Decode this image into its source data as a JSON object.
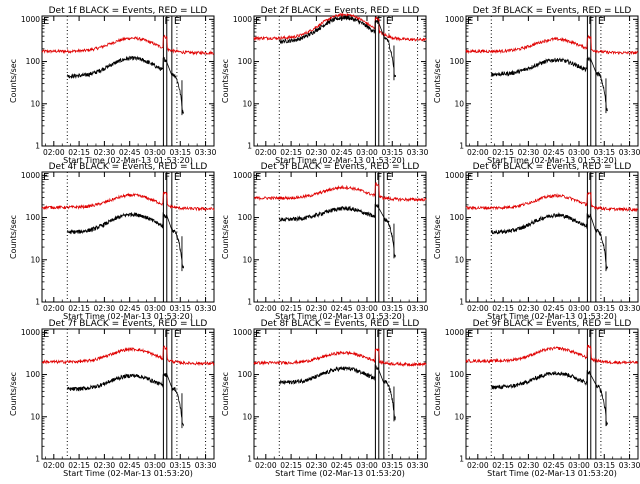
{
  "figure": {
    "xlabel": "Start Time (02-Mar-13 01:53:20)",
    "ylabel": "Counts/sec"
  },
  "chart_data": [
    {
      "type": "line",
      "title": "Det 1f BLACK = Events, RED = LLD",
      "ylabel": "Counts/sec",
      "xlabel": "Start Time (02-Mar-13 01:53:20)",
      "x_ticks": [
        "02:00",
        "02:15",
        "02:30",
        "02:45",
        "03:00",
        "03:15",
        "03:30"
      ],
      "y_scale": "log",
      "y_ticks": [
        "1",
        "10",
        "100",
        "1000"
      ],
      "ylim": [
        1,
        1200
      ],
      "xlim": [
        "01:53",
        "03:35"
      ],
      "series": [
        {
          "color": "#e00000",
          "baseline": 175,
          "peak": 360
        },
        {
          "color": "#000000",
          "baseline": 45,
          "peak": 120
        }
      ],
      "markers": {
        "dotted": [
          "02:08",
          "03:13",
          "03:30"
        ],
        "solid": [
          "03:05",
          "03:07",
          "03:10"
        ],
        "flags": [
          "F",
          "E"
        ]
      }
    },
    {
      "type": "line",
      "title": "Det 2f BLACK = Events, RED = LLD",
      "ylabel": "Counts/sec",
      "xlabel": "Start Time (02-Mar-13 01:53:20)",
      "x_ticks": [
        "02:00",
        "02:15",
        "02:30",
        "02:45",
        "03:00",
        "03:15",
        "03:30"
      ],
      "y_scale": "log",
      "y_ticks": [
        "1",
        "10",
        "100",
        "1000"
      ],
      "ylim": [
        1,
        1200
      ],
      "xlim": [
        "01:53",
        "03:35"
      ],
      "series": [
        {
          "color": "#e00000",
          "baseline": 360,
          "peak": 1300
        },
        {
          "color": "#000000",
          "baseline": 300,
          "peak": 1100
        }
      ],
      "markers": {
        "dotted": [
          "02:08",
          "03:13",
          "03:30"
        ],
        "solid": [
          "03:05",
          "03:07",
          "03:10"
        ],
        "flags": [
          "F",
          "E"
        ]
      }
    },
    {
      "type": "line",
      "title": "Det 3f BLACK = Events, RED = LLD",
      "ylabel": "Counts/sec",
      "xlabel": "Start Time (02-Mar-13 01:53:20)",
      "x_ticks": [
        "02:00",
        "02:15",
        "02:30",
        "02:45",
        "03:00",
        "03:15",
        "03:30"
      ],
      "y_scale": "log",
      "y_ticks": [
        "1",
        "10",
        "100",
        "1000"
      ],
      "ylim": [
        1,
        1200
      ],
      "xlim": [
        "01:53",
        "03:35"
      ],
      "series": [
        {
          "color": "#e00000",
          "baseline": 175,
          "peak": 340
        },
        {
          "color": "#000000",
          "baseline": 50,
          "peak": 110
        }
      ],
      "markers": {
        "dotted": [
          "02:08",
          "03:13",
          "03:30"
        ],
        "solid": [
          "03:05",
          "03:07",
          "03:10"
        ],
        "flags": [
          "F",
          "E"
        ]
      }
    },
    {
      "type": "line",
      "title": "Det 4f BLACK = Events, RED = LLD",
      "ylabel": "Counts/sec",
      "xlabel": "Start Time (02-Mar-13 01:53:20)",
      "x_ticks": [
        "02:00",
        "02:15",
        "02:30",
        "02:45",
        "03:00",
        "03:15",
        "03:30"
      ],
      "y_scale": "log",
      "y_ticks": [
        "1",
        "10",
        "100",
        "1000"
      ],
      "ylim": [
        1,
        1200
      ],
      "xlim": [
        "01:53",
        "03:35"
      ],
      "series": [
        {
          "color": "#e00000",
          "baseline": 175,
          "peak": 340
        },
        {
          "color": "#000000",
          "baseline": 45,
          "peak": 120
        }
      ],
      "markers": {
        "dotted": [
          "02:08",
          "03:13",
          "03:30"
        ],
        "solid": [
          "03:05",
          "03:07",
          "03:10"
        ],
        "flags": [
          "F",
          "E"
        ]
      }
    },
    {
      "type": "line",
      "title": "Det 5f BLACK = Events, RED = LLD",
      "ylabel": "Counts/sec",
      "xlabel": "Start Time (02-Mar-13 01:53:20)",
      "x_ticks": [
        "02:00",
        "02:15",
        "02:30",
        "02:45",
        "03:00",
        "03:15",
        "03:30"
      ],
      "y_scale": "log",
      "y_ticks": [
        "1",
        "10",
        "100",
        "1000"
      ],
      "ylim": [
        1,
        1200
      ],
      "xlim": [
        "01:53",
        "03:35"
      ],
      "series": [
        {
          "color": "#e00000",
          "baseline": 290,
          "peak": 520
        },
        {
          "color": "#000000",
          "baseline": 90,
          "peak": 165
        }
      ],
      "markers": {
        "dotted": [
          "02:08",
          "03:13",
          "03:30"
        ],
        "solid": [
          "03:05",
          "03:07",
          "03:10"
        ],
        "flags": [
          "F",
          "E"
        ]
      }
    },
    {
      "type": "line",
      "title": "Det 6f BLACK = Events, RED = LLD",
      "ylabel": "Counts/sec",
      "xlabel": "Start Time (02-Mar-13 01:53:20)",
      "x_ticks": [
        "02:00",
        "02:15",
        "02:30",
        "02:45",
        "03:00",
        "03:15",
        "03:30"
      ],
      "y_scale": "log",
      "y_ticks": [
        "1",
        "10",
        "100",
        "1000"
      ],
      "ylim": [
        1,
        1200
      ],
      "xlim": [
        "01:53",
        "03:35"
      ],
      "series": [
        {
          "color": "#e00000",
          "baseline": 170,
          "peak": 330
        },
        {
          "color": "#000000",
          "baseline": 45,
          "peak": 115
        }
      ],
      "markers": {
        "dotted": [
          "02:08",
          "03:13",
          "03:30"
        ],
        "solid": [
          "03:05",
          "03:07",
          "03:10"
        ],
        "flags": [
          "F",
          "E"
        ]
      }
    },
    {
      "type": "line",
      "title": "Det 7f BLACK = Events, RED = LLD",
      "ylabel": "Counts/sec",
      "xlabel": "Start Time (02-Mar-13 01:53:20)",
      "x_ticks": [
        "02:00",
        "02:15",
        "02:30",
        "02:45",
        "03:00",
        "03:15",
        "03:30"
      ],
      "y_scale": "log",
      "y_ticks": [
        "1",
        "10",
        "100",
        "1000"
      ],
      "ylim": [
        1,
        1200
      ],
      "xlim": [
        "01:53",
        "03:35"
      ],
      "series": [
        {
          "color": "#e00000",
          "baseline": 200,
          "peak": 400
        },
        {
          "color": "#000000",
          "baseline": 45,
          "peak": 95
        }
      ],
      "markers": {
        "dotted": [
          "02:08",
          "03:13",
          "03:30"
        ],
        "solid": [
          "03:05",
          "03:07",
          "03:10"
        ],
        "flags": [
          "F",
          "E"
        ]
      }
    },
    {
      "type": "line",
      "title": "Det 8f BLACK = Events, RED = LLD",
      "ylabel": "Counts/sec",
      "xlabel": "Start Time (02-Mar-13 01:53:20)",
      "x_ticks": [
        "02:00",
        "02:15",
        "02:30",
        "02:45",
        "03:00",
        "03:15",
        "03:30"
      ],
      "y_scale": "log",
      "y_ticks": [
        "1",
        "10",
        "100",
        "1000"
      ],
      "ylim": [
        1,
        1200
      ],
      "xlim": [
        "01:53",
        "03:35"
      ],
      "series": [
        {
          "color": "#e00000",
          "baseline": 190,
          "peak": 330
        },
        {
          "color": "#000000",
          "baseline": 65,
          "peak": 140
        }
      ],
      "markers": {
        "dotted": [
          "02:08",
          "03:13",
          "03:30"
        ],
        "solid": [
          "03:05",
          "03:07",
          "03:10"
        ],
        "flags": [
          "F",
          "E"
        ]
      }
    },
    {
      "type": "line",
      "title": "Det 9f BLACK = Events, RED = LLD",
      "ylabel": "Counts/sec",
      "xlabel": "Start Time (02-Mar-13 01:53:20)",
      "x_ticks": [
        "02:00",
        "02:15",
        "02:30",
        "02:45",
        "03:00",
        "03:15",
        "03:30"
      ],
      "y_scale": "log",
      "y_ticks": [
        "1",
        "10",
        "100",
        "1000"
      ],
      "ylim": [
        1,
        1200
      ],
      "xlim": [
        "01:53",
        "03:35"
      ],
      "series": [
        {
          "color": "#e00000",
          "baseline": 210,
          "peak": 420
        },
        {
          "color": "#000000",
          "baseline": 50,
          "peak": 110
        }
      ],
      "markers": {
        "dotted": [
          "02:08",
          "03:13",
          "03:30"
        ],
        "solid": [
          "03:05",
          "03:07",
          "03:10"
        ],
        "flags": [
          "F",
          "E"
        ]
      }
    }
  ]
}
